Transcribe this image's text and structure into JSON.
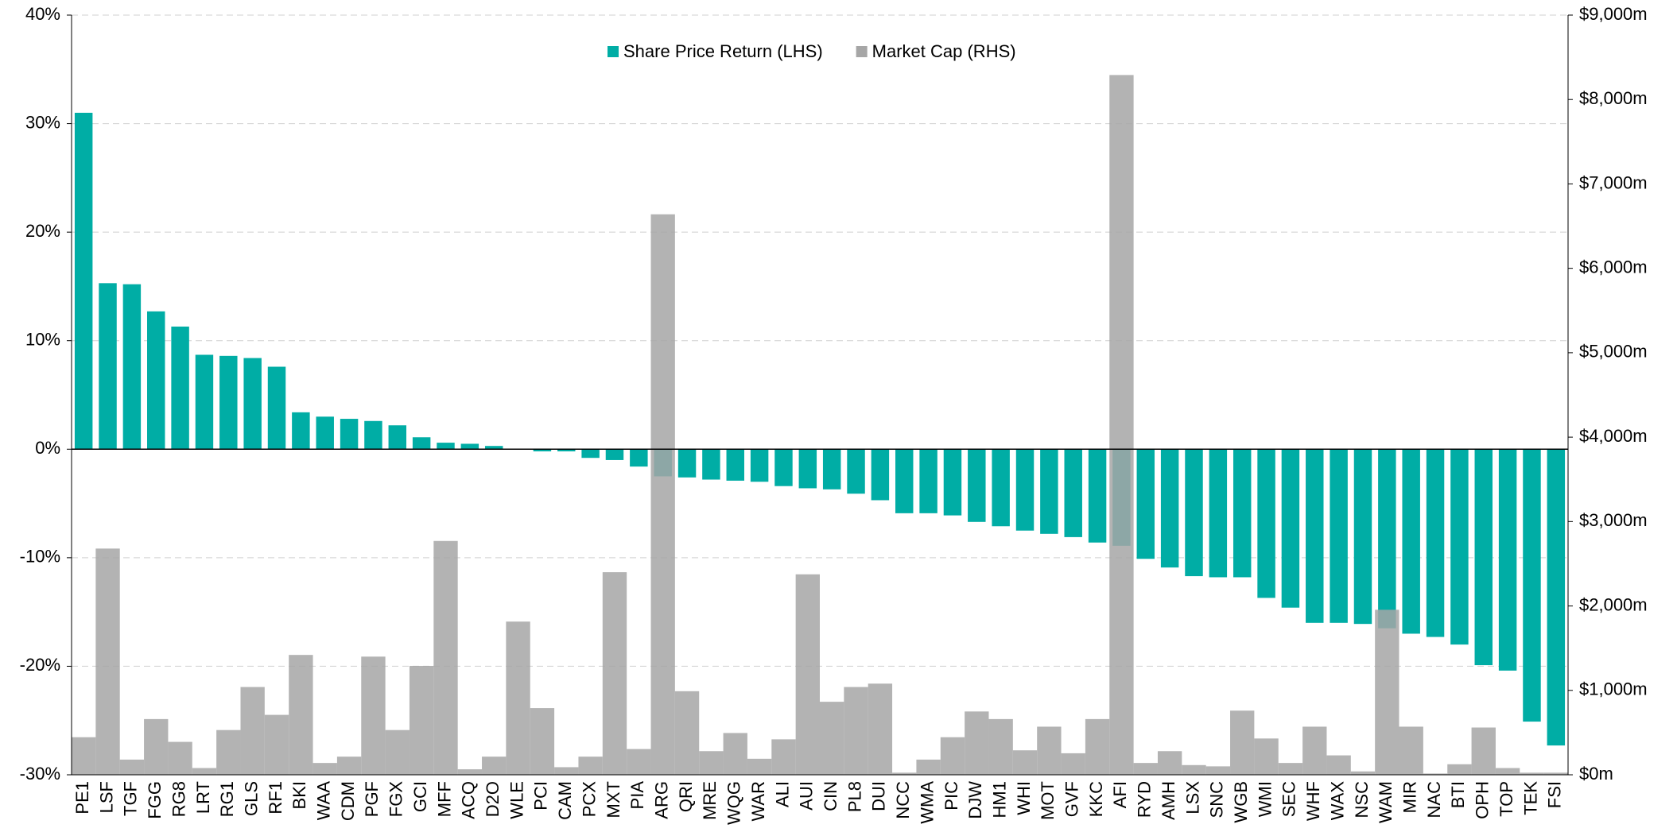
{
  "chart_data": {
    "type": "bar",
    "categories": [
      "PE1",
      "LSF",
      "TGF",
      "FGG",
      "RG8",
      "LRT",
      "RG1",
      "GLS",
      "RF1",
      "BKI",
      "WAA",
      "CDM",
      "PGF",
      "FGX",
      "GCI",
      "MFF",
      "ACQ",
      "D2O",
      "WLE",
      "PCI",
      "CAM",
      "PCX",
      "MXT",
      "PIA",
      "ARG",
      "QRI",
      "MRE",
      "WQG",
      "WAR",
      "ALI",
      "AUI",
      "CIN",
      "PL8",
      "DUI",
      "NCC",
      "WMA",
      "PIC",
      "DJW",
      "HM1",
      "WHI",
      "MOT",
      "GVF",
      "KKC",
      "AFI",
      "RYD",
      "AMH",
      "LSX",
      "SNC",
      "WGB",
      "WMI",
      "SEC",
      "WHF",
      "WAX",
      "NSC",
      "WAM",
      "MIR",
      "NAC",
      "BTI",
      "OPH",
      "TOP",
      "TEK",
      "FSI"
    ],
    "series": [
      {
        "name": "Share Price Return (LHS)",
        "color": "#00ada5",
        "values": [
          31,
          15.3,
          15.2,
          12.7,
          11.3,
          8.7,
          8.6,
          8.4,
          7.6,
          3.4,
          3.0,
          2.8,
          2.6,
          2.2,
          1.1,
          0.6,
          0.5,
          0.3,
          0,
          -0.2,
          -0.2,
          -0.8,
          -1.0,
          -1.6,
          -2.5,
          -2.6,
          -2.8,
          -2.9,
          -3.0,
          -3.4,
          -3.6,
          -3.7,
          -4.1,
          -4.7,
          -5.9,
          -5.9,
          -6.1,
          -6.7,
          -7.1,
          -7.5,
          -7.8,
          -8.1,
          -8.6,
          -8.9,
          -10.1,
          -10.9,
          -11.7,
          -11.8,
          -11.8,
          -13.7,
          -14.6,
          -16.0,
          -16.0,
          -16.1,
          -16.5,
          -17.0,
          -17.3,
          -18.0,
          -19.9,
          -20.4,
          -25.1,
          -27.3
        ]
      },
      {
        "name": "Market Cap (RHS)",
        "color": "#a6a6a6",
        "axis": "y2",
        "values": [
          445,
          2680,
          180,
          660,
          390,
          80,
          530,
          1040,
          710,
          1420,
          140,
          215,
          1400,
          530,
          1290,
          2770,
          65,
          215,
          1815,
          790,
          90,
          215,
          2400,
          305,
          6640,
          990,
          280,
          495,
          190,
          420,
          2375,
          865,
          1040,
          1080,
          25,
          180,
          445,
          750,
          660,
          290,
          570,
          255,
          660,
          8290,
          140,
          280,
          115,
          100,
          760,
          430,
          140,
          570,
          230,
          40,
          1955,
          570,
          15,
          125,
          560,
          80,
          25,
          25
        ]
      }
    ],
    "ylim": [
      -30,
      40
    ],
    "yticks": [
      {
        "value": -30,
        "label": "-30%"
      },
      {
        "value": -20,
        "label": "-20%"
      },
      {
        "value": -10,
        "label": "-10%"
      },
      {
        "value": 0,
        "label": "0%"
      },
      {
        "value": 10,
        "label": "10%"
      },
      {
        "value": 20,
        "label": "20%"
      },
      {
        "value": 30,
        "label": "30%"
      },
      {
        "value": 40,
        "label": "40%"
      }
    ],
    "y2lim": [
      0,
      9000
    ],
    "y2ticks": [
      {
        "value": 0,
        "label": "$0m"
      },
      {
        "value": 1000,
        "label": "$1,000m"
      },
      {
        "value": 2000,
        "label": "$2,000m"
      },
      {
        "value": 3000,
        "label": "$3,000m"
      },
      {
        "value": 4000,
        "label": "$4,000m"
      },
      {
        "value": 5000,
        "label": "$5,000m"
      },
      {
        "value": 6000,
        "label": "$6,000m"
      },
      {
        "value": 7000,
        "label": "$7,000m"
      },
      {
        "value": 8000,
        "label": "$8,000m"
      },
      {
        "value": 9000,
        "label": "$9,000m"
      }
    ],
    "grid": true,
    "legend": "top"
  }
}
